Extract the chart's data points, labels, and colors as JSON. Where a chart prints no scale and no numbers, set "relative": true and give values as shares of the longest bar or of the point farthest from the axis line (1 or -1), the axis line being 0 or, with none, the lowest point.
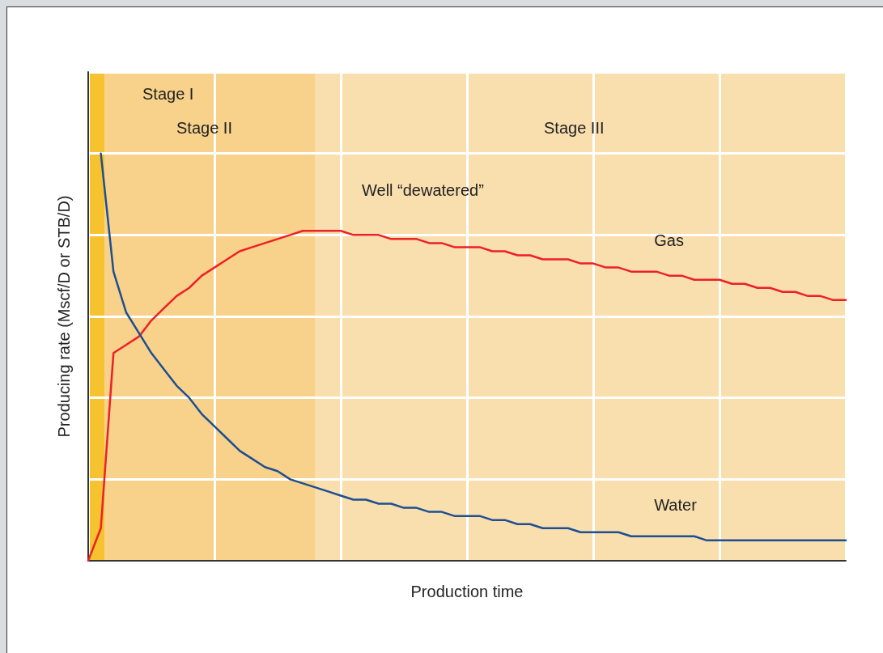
{
  "chart_data": {
    "type": "line",
    "relative": true,
    "xlabel": "Production time",
    "ylabel": "Producing rate (Mscf/D or STB/D)",
    "categories": [
      null,
      null,
      null,
      null,
      null,
      null,
      null,
      null,
      null,
      null,
      null,
      null,
      null,
      null,
      null,
      null,
      null,
      null,
      null,
      null,
      null,
      null,
      null,
      null,
      null,
      null,
      null,
      null,
      null,
      null,
      null,
      null,
      null,
      null,
      null,
      null,
      null,
      null,
      null,
      null,
      null,
      null,
      null,
      null,
      null,
      null,
      null,
      null,
      null,
      null,
      null,
      null,
      null,
      null,
      null,
      null,
      null,
      null,
      null,
      null,
      null
    ],
    "grid": true,
    "legend": false,
    "marker": "none",
    "line_style": "solid",
    "series": [
      {
        "name": "Gas",
        "color": "#ec2027",
        "values": [
          0,
          0.08,
          0.51,
          0.53,
          0.55,
          0.59,
          0.62,
          0.65,
          0.67,
          0.7,
          0.72,
          0.74,
          0.76,
          0.77,
          0.78,
          0.79,
          0.8,
          0.81,
          0.81,
          0.81,
          0.81,
          0.8,
          0.8,
          0.8,
          0.79,
          0.79,
          0.79,
          0.78,
          0.78,
          0.77,
          0.77,
          0.77,
          0.76,
          0.76,
          0.75,
          0.75,
          0.74,
          0.74,
          0.74,
          0.73,
          0.73,
          0.72,
          0.72,
          0.71,
          0.71,
          0.71,
          0.7,
          0.7,
          0.69,
          0.69,
          0.69,
          0.68,
          0.68,
          0.67,
          0.67,
          0.66,
          0.66,
          0.65,
          0.65,
          0.64,
          0.64
        ]
      },
      {
        "name": "Water",
        "color": "#1d4f91",
        "values": [
          null,
          1.0,
          0.71,
          0.61,
          0.56,
          0.51,
          0.47,
          0.43,
          0.4,
          0.36,
          0.33,
          0.3,
          0.27,
          0.25,
          0.23,
          0.22,
          0.2,
          0.19,
          0.18,
          0.17,
          0.16,
          0.15,
          0.15,
          0.14,
          0.14,
          0.13,
          0.13,
          0.12,
          0.12,
          0.11,
          0.11,
          0.11,
          0.1,
          0.1,
          0.09,
          0.09,
          0.08,
          0.08,
          0.08,
          0.07,
          0.07,
          0.07,
          0.07,
          0.06,
          0.06,
          0.06,
          0.06,
          0.06,
          0.06,
          0.05,
          0.05,
          0.05,
          0.05,
          0.05,
          0.05,
          0.05,
          0.05,
          0.05,
          0.05,
          0.05,
          0.05
        ]
      }
    ],
    "annotations": [
      "Stage I",
      "Stage II",
      "Stage III",
      "Well “dewatered”"
    ]
  }
}
